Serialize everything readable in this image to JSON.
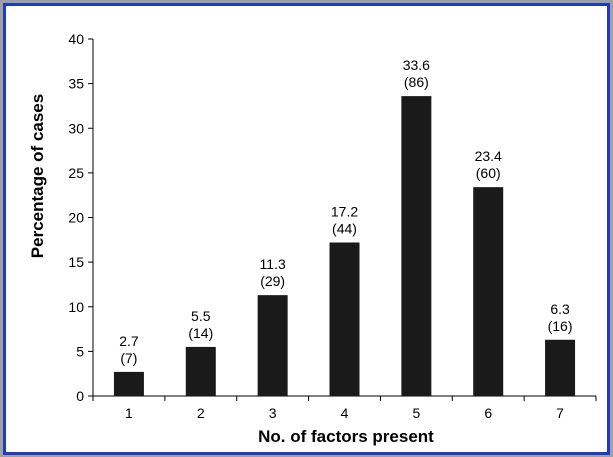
{
  "chart_data": {
    "type": "bar",
    "categories": [
      "1",
      "2",
      "3",
      "4",
      "5",
      "6",
      "7"
    ],
    "values": [
      2.7,
      5.5,
      11.3,
      17.2,
      33.6,
      23.4,
      6.3
    ],
    "counts": [
      "(7)",
      "(14)",
      "(29)",
      "(44)",
      "(86)",
      "(60)",
      "(16)"
    ],
    "value_labels": [
      "2.7",
      "5.5",
      "11.3",
      "17.2",
      "33.6",
      "23.4",
      "6.3"
    ],
    "xlabel": "No. of factors present",
    "ylabel": "Percentage of cases",
    "ylim": [
      0,
      40
    ],
    "yticks": [
      0,
      5,
      10,
      15,
      20,
      25,
      30,
      35,
      40
    ],
    "grid": false,
    "bar_color": "#1a1a1a",
    "frame_color": "#1a3cc8"
  }
}
